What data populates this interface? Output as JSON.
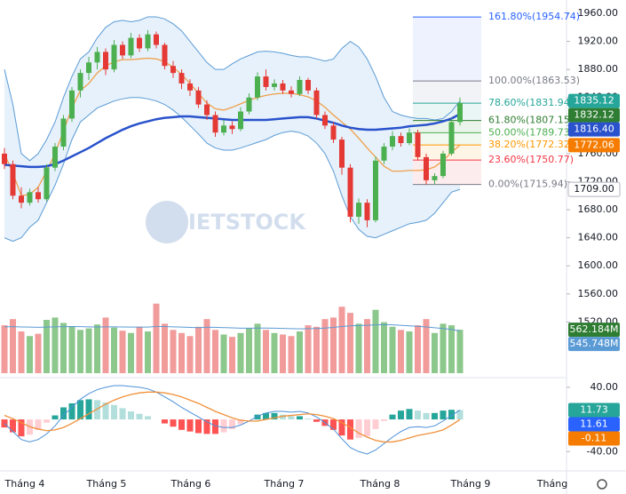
{
  "chart_data": {
    "type": "candlestick",
    "watermark": "IETSTOCK",
    "x_labels": [
      "Tháng 4",
      "Tháng 5",
      "Tháng 6",
      "Tháng 7",
      "Tháng 8",
      "Tháng 9",
      "Tháng"
    ],
    "ylim": [
      1447,
      1979
    ],
    "yticks": [
      {
        "value": 1960,
        "label": "1960.00"
      },
      {
        "value": 1920,
        "label": "1920.00"
      },
      {
        "value": 1880,
        "label": "1880.00"
      },
      {
        "value": 1840,
        "label": "1840.00"
      },
      {
        "value": 1800,
        "label": "1800.00"
      },
      {
        "value": 1760,
        "label": "1760.00"
      },
      {
        "value": 1720,
        "label": "1720.00"
      },
      {
        "value": 1680,
        "label": "1680.00"
      },
      {
        "value": 1640,
        "label": "1640.00"
      },
      {
        "value": 1600,
        "label": "1600.00"
      },
      {
        "value": 1560,
        "label": "1560.00"
      },
      {
        "value": 1520,
        "label": "1520.00"
      }
    ],
    "up_color": "#4caf50",
    "down_color": "#e53935",
    "candles": [
      [
        1760,
        1768,
        1738,
        1745
      ],
      [
        1745,
        1750,
        1695,
        1700
      ],
      [
        1700,
        1712,
        1682,
        1690
      ],
      [
        1690,
        1710,
        1686,
        1705
      ],
      [
        1705,
        1712,
        1690,
        1695
      ],
      [
        1695,
        1745,
        1692,
        1740
      ],
      [
        1740,
        1775,
        1735,
        1770
      ],
      [
        1770,
        1815,
        1765,
        1810
      ],
      [
        1810,
        1855,
        1805,
        1850
      ],
      [
        1850,
        1880,
        1840,
        1875
      ],
      [
        1875,
        1898,
        1865,
        1890
      ],
      [
        1890,
        1912,
        1880,
        1905
      ],
      [
        1905,
        1910,
        1872,
        1880
      ],
      [
        1880,
        1922,
        1876,
        1915
      ],
      [
        1915,
        1920,
        1895,
        1900
      ],
      [
        1900,
        1932,
        1896,
        1925
      ],
      [
        1925,
        1930,
        1905,
        1910
      ],
      [
        1910,
        1936,
        1906,
        1930
      ],
      [
        1930,
        1934,
        1910,
        1915
      ],
      [
        1915,
        1918,
        1880,
        1885
      ],
      [
        1885,
        1892,
        1868,
        1875
      ],
      [
        1875,
        1880,
        1852,
        1860
      ],
      [
        1860,
        1866,
        1842,
        1850
      ],
      [
        1850,
        1855,
        1825,
        1830
      ],
      [
        1830,
        1836,
        1808,
        1815
      ],
      [
        1815,
        1820,
        1784,
        1790
      ],
      [
        1790,
        1808,
        1786,
        1800
      ],
      [
        1800,
        1806,
        1788,
        1795
      ],
      [
        1795,
        1826,
        1792,
        1820
      ],
      [
        1820,
        1846,
        1816,
        1840
      ],
      [
        1840,
        1876,
        1836,
        1870
      ],
      [
        1870,
        1880,
        1850,
        1855
      ],
      [
        1855,
        1866,
        1850,
        1860
      ],
      [
        1860,
        1865,
        1845,
        1850
      ],
      [
        1850,
        1856,
        1840,
        1845
      ],
      [
        1845,
        1870,
        1842,
        1865
      ],
      [
        1865,
        1868,
        1845,
        1850
      ],
      [
        1850,
        1854,
        1810,
        1815
      ],
      [
        1815,
        1820,
        1795,
        1800
      ],
      [
        1800,
        1805,
        1775,
        1780
      ],
      [
        1780,
        1784,
        1730,
        1740
      ],
      [
        1740,
        1745,
        1662,
        1670
      ],
      [
        1670,
        1696,
        1660,
        1690
      ],
      [
        1690,
        1695,
        1655,
        1665
      ],
      [
        1665,
        1756,
        1662,
        1750
      ],
      [
        1750,
        1775,
        1745,
        1770
      ],
      [
        1770,
        1792,
        1765,
        1785
      ],
      [
        1785,
        1790,
        1770,
        1775
      ],
      [
        1775,
        1796,
        1772,
        1790
      ],
      [
        1790,
        1794,
        1750,
        1755
      ],
      [
        1755,
        1760,
        1716,
        1722
      ],
      [
        1722,
        1732,
        1716,
        1728
      ],
      [
        1728,
        1764,
        1725,
        1760
      ],
      [
        1760,
        1810,
        1757,
        1805
      ],
      [
        1805,
        1840,
        1800,
        1832.12
      ]
    ],
    "bands": {
      "color": "#5b9bd5",
      "fill": "#e6f1fb",
      "upper": [
        1880,
        1830,
        1760,
        1750,
        1760,
        1780,
        1805,
        1840,
        1870,
        1895,
        1905,
        1925,
        1940,
        1948,
        1950,
        1948,
        1950,
        1955,
        1955,
        1952,
        1945,
        1935,
        1920,
        1905,
        1890,
        1880,
        1880,
        1888,
        1895,
        1900,
        1905,
        1906,
        1905,
        1903,
        1900,
        1898,
        1898,
        1895,
        1892,
        1895,
        1910,
        1920,
        1912,
        1895,
        1870,
        1840,
        1820,
        1815,
        1812,
        1810,
        1810,
        1808,
        1810,
        1820,
        1835.12
      ],
      "lower": [
        1640,
        1635,
        1640,
        1655,
        1665,
        1690,
        1715,
        1745,
        1780,
        1805,
        1815,
        1825,
        1830,
        1835,
        1838,
        1840,
        1840,
        1838,
        1835,
        1830,
        1822,
        1812,
        1800,
        1788,
        1775,
        1768,
        1765,
        1765,
        1768,
        1772,
        1776,
        1780,
        1786,
        1790,
        1792,
        1790,
        1785,
        1775,
        1760,
        1735,
        1700,
        1670,
        1652,
        1642,
        1640,
        1645,
        1650,
        1655,
        1660,
        1662,
        1665,
        1675,
        1690,
        1705,
        1709
      ]
    },
    "lines": [
      {
        "color": "#f0a04b",
        "width": 1.3,
        "values": [
          1760,
          1732,
          1700,
          1702,
          1712,
          1735,
          1760,
          1792,
          1825,
          1850,
          1860,
          1875,
          1885,
          1891,
          1894,
          1894,
          1895,
          1896,
          1895,
          1891,
          1883,
          1873,
          1860,
          1846,
          1832,
          1824,
          1822,
          1826,
          1831,
          1836,
          1840,
          1843,
          1845,
          1846,
          1846,
          1844,
          1841,
          1835,
          1826,
          1815,
          1805,
          1795,
          1782,
          1768,
          1755,
          1742,
          1735,
          1735,
          1736,
          1736,
          1737,
          1741,
          1750,
          1762,
          1772.06
        ]
      },
      {
        "color": "#2952cc",
        "width": 2.5,
        "values": [
          1744,
          1743,
          1742,
          1741,
          1741,
          1742,
          1745,
          1750,
          1756,
          1762,
          1768,
          1775,
          1782,
          1788,
          1794,
          1799,
          1803,
          1806,
          1809,
          1811,
          1812,
          1813,
          1813,
          1812,
          1811,
          1810,
          1809,
          1808,
          1808,
          1808,
          1808,
          1808,
          1809,
          1810,
          1811,
          1812,
          1812,
          1810,
          1807,
          1804,
          1800,
          1797,
          1795,
          1794,
          1794,
          1795,
          1796,
          1797,
          1799,
          1800,
          1801,
          1803,
          1806,
          1810,
          1816.4
        ]
      }
    ],
    "fib_levels": [
      {
        "value": 1954.74,
        "label": "161.80%(1954.74)",
        "color": "#2962ff",
        "fill": "#eef2ff"
      },
      {
        "value": 1863.53,
        "label": "100.00%(1863.53)",
        "color": "#787b86",
        "fill": "#f1f3f6"
      },
      {
        "value": 1831.94,
        "label": "78.60%(1831.94)",
        "color": "#26a69a",
        "fill": "#eaf6f5"
      },
      {
        "value": 1807.15,
        "label": "61.80%(1807.15)",
        "color": "#2e7d32",
        "fill": "#ebf4ea"
      },
      {
        "value": 1789.73,
        "label": "50.00%(1789.73)",
        "color": "#4caf50",
        "fill": "#f0f8ef"
      },
      {
        "value": 1772.32,
        "label": "38.20%(1772.32)",
        "color": "#ff9800",
        "fill": "#fff5e6"
      },
      {
        "value": 1750.77,
        "label": "23.60%(1750.77)",
        "color": "#f23645",
        "fill": "#fdeced"
      },
      {
        "value": 1715.94,
        "label": "0.00%(1715.94)",
        "color": "#787b86",
        "fill": "#ffffff"
      }
    ],
    "price_tags": [
      {
        "value": 1835.12,
        "label": "1835.12",
        "color": "#26a69a"
      },
      {
        "value": 1832.12,
        "label": "1832.12",
        "color": "#2e7d32"
      },
      {
        "value": 1816.4,
        "label": "1816.40",
        "color": "#2952cc"
      },
      {
        "value": 1772.06,
        "label": "1772.06",
        "color": "#f57c00"
      },
      {
        "value": 1709,
        "label": "1709.00",
        "color": "#ffffff"
      }
    ],
    "volume": {
      "vlim": [
        0,
        1150
      ],
      "up_color": "#8cc78b",
      "down_color": "#f29b9b",
      "ma_color": "#5b9bd5",
      "values": [
        620,
        700,
        540,
        480,
        510,
        690,
        720,
        650,
        600,
        560,
        580,
        630,
        720,
        590,
        550,
        520,
        600,
        540,
        900,
        640,
        560,
        520,
        480,
        600,
        700,
        560,
        500,
        470,
        520,
        580,
        640,
        560,
        520,
        500,
        480,
        540,
        620,
        600,
        700,
        720,
        860,
        780,
        640,
        700,
        820,
        660,
        600,
        560,
        540,
        620,
        700,
        520,
        640,
        620,
        562.184
      ],
      "ma": [
        600,
        602,
        598,
        596,
        594,
        596,
        600,
        602,
        604,
        602,
        600,
        598,
        600,
        600,
        598,
        596,
        596,
        596,
        604,
        604,
        600,
        596,
        592,
        590,
        594,
        594,
        590,
        586,
        582,
        582,
        584,
        584,
        582,
        580,
        576,
        574,
        576,
        578,
        584,
        592,
        604,
        612,
        616,
        620,
        626,
        628,
        626,
        620,
        612,
        606,
        598,
        588,
        578,
        566,
        545.748
      ],
      "tags": [
        {
          "value": 562.184,
          "label": "562.184M",
          "color": "#2e7d32"
        },
        {
          "value": 545.748,
          "label": "545.748M",
          "color": "#5b9bd5"
        }
      ]
    },
    "macd": {
      "ylim": [
        -64,
        52
      ],
      "yticks": [
        {
          "value": 40,
          "label": "40.00"
        },
        {
          "value": -40,
          "label": "-40.00"
        }
      ],
      "macd_color": "#4a90d9",
      "signal_color": "#f0913a",
      "macd": [
        -5,
        -15,
        -25,
        -28,
        -25,
        -18,
        -8,
        5,
        15,
        25,
        32,
        37,
        40,
        42,
        42,
        41,
        40,
        38,
        34,
        28,
        22,
        15,
        9,
        3,
        -3,
        -8,
        -10,
        -10,
        -7,
        -2,
        4,
        8,
        10,
        10,
        9,
        10,
        8,
        3,
        -4,
        -12,
        -24,
        -35,
        -40,
        -43,
        -38,
        -30,
        -22,
        -15,
        -10,
        -9,
        -10,
        -8,
        -2,
        5,
        11.61
      ],
      "signal": [
        5,
        1,
        -4,
        -9,
        -12,
        -14,
        -13,
        -10,
        -5,
        1,
        7,
        13,
        19,
        24,
        28,
        31,
        33,
        34,
        34,
        33,
        31,
        28,
        24,
        20,
        15,
        10,
        6,
        2,
        -1,
        -2,
        -2,
        0,
        2,
        4,
        5,
        6,
        7,
        6,
        4,
        1,
        -4,
        -10,
        -17,
        -22,
        -26,
        -28,
        -28,
        -26,
        -23,
        -20,
        -18,
        -16,
        -13,
        -7,
        -0.11
      ],
      "histogram": [
        -10,
        -16,
        -21,
        -19,
        -13,
        -4,
        5,
        15,
        20,
        24,
        25,
        24,
        21,
        18,
        14,
        10,
        7,
        4,
        0,
        -5,
        -9,
        -13,
        -15,
        -17,
        -18,
        -18,
        -16,
        -12,
        -6,
        0,
        6,
        8,
        8,
        6,
        4,
        4,
        1,
        -3,
        -8,
        -13,
        -20,
        -25,
        -23,
        -21,
        -12,
        -2,
        6,
        11,
        13,
        11,
        8,
        8,
        11,
        12,
        11.73
      ],
      "tags": [
        {
          "value": 11.73,
          "color": "#26a69a"
        },
        {
          "value": 11.61,
          "color": "#2962ff"
        },
        {
          "value": -0.11,
          "color": "#f57c00"
        }
      ]
    }
  }
}
